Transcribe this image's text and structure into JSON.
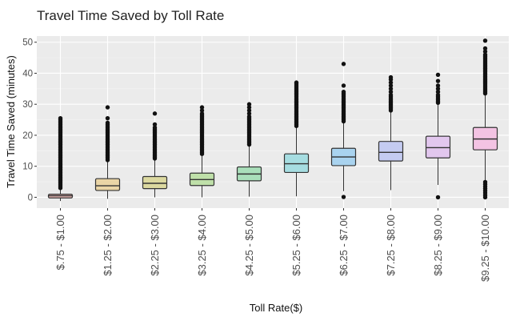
{
  "chart_data": {
    "type": "box",
    "title": "Travel Time Saved by Toll Rate",
    "xlabel": "Toll Rate($)",
    "ylabel": "Travel Time Saved (minutes)",
    "ylim": [
      -3.5,
      52
    ],
    "yticks": [
      0,
      10,
      20,
      30,
      40,
      50
    ],
    "grid": true,
    "legend": "none",
    "categories": [
      "$.75 - $1.00",
      "$1.25 - $2.00",
      "$2.25 - $3.00",
      "$3.25 - $4.00",
      "$4.25 - $5.00",
      "$5.25 - $6.00",
      "$6.25 - $7.00",
      "$7.25 - $8.00",
      "$8.25 - $9.00",
      "$9.25 - $10.00"
    ],
    "series": [
      {
        "category": "$.75 - $1.00",
        "color": "#f7c2bf",
        "whisker_low": -1.2,
        "q1": -0.2,
        "median": 0.5,
        "q3": 1.0,
        "whisker_high": 2.5,
        "outliers": [
          3,
          3.5,
          4,
          4.5,
          5,
          5.5,
          6,
          6.5,
          7,
          7.5,
          8,
          8.5,
          9,
          9.5,
          10,
          10.5,
          11,
          11.5,
          12,
          12.5,
          13,
          13.5,
          14,
          14.5,
          15,
          15.5,
          16,
          16.5,
          17,
          17.5,
          18,
          18.5,
          19,
          19.5,
          20,
          20.5,
          21,
          21.5,
          22,
          22.5,
          23,
          23.5,
          24,
          24.5,
          25,
          25.5
        ]
      },
      {
        "category": "$1.25 - $2.00",
        "color": "#ead5a6",
        "whisker_low": -0.5,
        "q1": 2.2,
        "median": 3.7,
        "q3": 6.0,
        "whisker_high": 11.5,
        "outliers": [
          12,
          12.5,
          13,
          13.5,
          14,
          14.5,
          15,
          15.5,
          16,
          16.5,
          17,
          17.5,
          18,
          18.5,
          19,
          19.5,
          20,
          20.5,
          21,
          21.5,
          22,
          22.5,
          23,
          23.5,
          24,
          25.5,
          29
        ]
      },
      {
        "category": "$2.25 - $3.00",
        "color": "#dcd9a0",
        "whisker_low": 0.0,
        "q1": 2.8,
        "median": 4.5,
        "q3": 6.7,
        "whisker_high": 12.0,
        "outliers": [
          12.5,
          13,
          13.5,
          14,
          14.5,
          15,
          15.5,
          16,
          16.5,
          17,
          17.5,
          18,
          18.5,
          19,
          19.5,
          20,
          20.5,
          21,
          21.5,
          22,
          22.5,
          23.5,
          27
        ]
      },
      {
        "category": "$3.25 - $4.00",
        "color": "#bfe0a9",
        "whisker_low": 0.0,
        "q1": 3.8,
        "median": 5.7,
        "q3": 7.8,
        "whisker_high": 13.5,
        "outliers": [
          14,
          14.5,
          15,
          15.5,
          16,
          16.5,
          17,
          17.5,
          18,
          18.5,
          19,
          19.5,
          20,
          20.5,
          21,
          21.5,
          22,
          22.5,
          23,
          23.5,
          24,
          24.5,
          25,
          25.5,
          26,
          26.5,
          27,
          28,
          29
        ]
      },
      {
        "category": "$4.25 - $5.00",
        "color": "#a9dfba",
        "whisker_low": 0.2,
        "q1": 5.3,
        "median": 7.5,
        "q3": 9.8,
        "whisker_high": 16.5,
        "outliers": [
          17,
          17.5,
          18,
          18.5,
          19,
          19.5,
          20,
          20.5,
          21,
          21.5,
          22,
          22.5,
          23,
          23.5,
          24,
          24.5,
          25,
          25.5,
          26,
          27,
          28,
          29,
          30
        ]
      },
      {
        "category": "$5.25 - $6.00",
        "color": "#a6dde1",
        "whisker_low": 0.3,
        "q1": 8.0,
        "median": 10.8,
        "q3": 14.0,
        "whisker_high": 22.5,
        "outliers": [
          23,
          23.5,
          24,
          24.5,
          25,
          25.5,
          26,
          26.5,
          27,
          27.5,
          28,
          28.5,
          29,
          29.5,
          30,
          30.5,
          31,
          31.5,
          32,
          32.5,
          33,
          33.5,
          34,
          34.5,
          35,
          35.5,
          36,
          36.5,
          37
        ]
      },
      {
        "category": "$6.25 - $7.00",
        "color": "#a9d3ef",
        "whisker_low": 2.0,
        "q1": 10.2,
        "median": 13.0,
        "q3": 15.8,
        "whisker_high": 24.0,
        "outliers": [
          0.1,
          24.5,
          25,
          25.5,
          26,
          26.5,
          27,
          27.5,
          28,
          28.5,
          29,
          29.5,
          30,
          30.5,
          31,
          31.5,
          32,
          32.5,
          33,
          33.5,
          34,
          36,
          43
        ]
      },
      {
        "category": "$7.25 - $8.00",
        "color": "#c4cbf1",
        "whisker_low": 2.3,
        "q1": 11.7,
        "median": 14.5,
        "q3": 18.0,
        "whisker_high": 27.5,
        "outliers": [
          28,
          28.5,
          29,
          29.5,
          30,
          30.5,
          31,
          31.5,
          32,
          32.5,
          33,
          34,
          35,
          36,
          37,
          38,
          38.7
        ]
      },
      {
        "category": "$8.25 - $9.00",
        "color": "#e2c7ee",
        "whisker_low": 4.0,
        "q1": 12.7,
        "median": 16.0,
        "q3": 19.7,
        "whisker_high": 30.0,
        "outliers": [
          0.0,
          30.5,
          31,
          31.5,
          32,
          32.5,
          33,
          34,
          35,
          36,
          37.5,
          39.5
        ]
      },
      {
        "category": "$9.25 - $10.00",
        "color": "#f3c3e3",
        "whisker_low": 5.5,
        "q1": 15.3,
        "median": 18.8,
        "q3": 22.5,
        "whisker_high": 33.0,
        "outliers": [
          0.0,
          0.7,
          1.4,
          2.1,
          2.8,
          3.5,
          4.2,
          4.9,
          33.5,
          34,
          34.5,
          35,
          35.5,
          36,
          36.5,
          37,
          37.5,
          38,
          38.5,
          39,
          39.5,
          40,
          40.5,
          41,
          41.5,
          42,
          42.5,
          43,
          43.5,
          44,
          44.5,
          45,
          45.5,
          46,
          47,
          48,
          50.5
        ]
      }
    ]
  },
  "colors": {
    "panel_background": "#ebebeb",
    "grid_major": "#ffffff",
    "grid_minor": "#f5f5f5",
    "box_outline": "#333333",
    "outlier_point": "#111111"
  }
}
